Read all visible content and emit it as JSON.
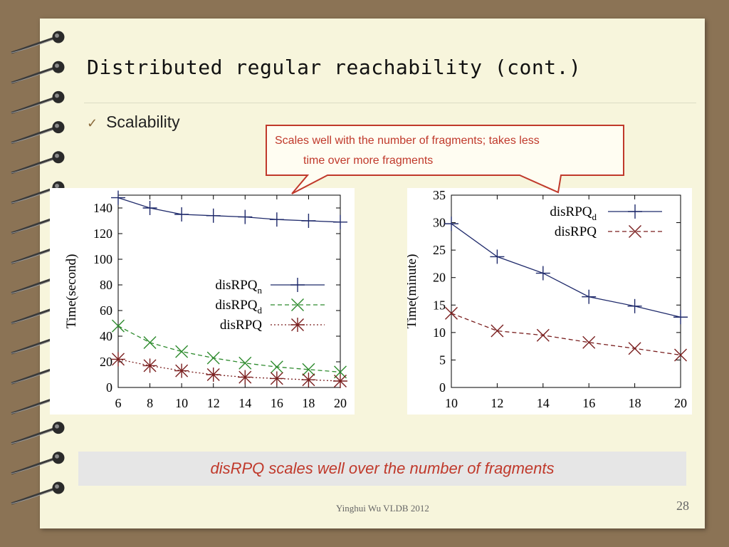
{
  "slide": {
    "title": "Distributed regular reachability (cont.)",
    "bullet": "Scalability",
    "callout_line1": "Scales well with the number of fragments;  takes less",
    "callout_line2": "time over more fragments",
    "conclusion": "disRPQ scales well over the number of fragments",
    "footer": "Yinghui Wu VLDB  2012",
    "page_number": "28"
  },
  "icons": {
    "bullet_marker": "check-icon",
    "binding": "spiral-binding-icon"
  },
  "colors": {
    "accent_red": "#c0392b",
    "series_navy": "#1f2a6b",
    "series_green": "#2e8b2e",
    "series_maroon": "#7a1f1f"
  },
  "chart_data": [
    {
      "type": "line",
      "ylabel": "Time(second)",
      "x": [
        6,
        8,
        10,
        12,
        14,
        16,
        18,
        20
      ],
      "xlim": [
        6,
        20
      ],
      "ylim": [
        0,
        150
      ],
      "yticks": [
        0,
        20,
        40,
        60,
        80,
        100,
        120,
        140
      ],
      "legend_position": "right",
      "series": [
        {
          "name": "disRPQ",
          "sub": "n",
          "marker": "plus",
          "color": "#1f2a6b",
          "dash": "solid",
          "values": [
            148,
            140,
            135,
            134,
            133,
            131,
            130,
            129
          ]
        },
        {
          "name": "disRPQ",
          "sub": "d",
          "marker": "cross",
          "color": "#2e8b2e",
          "dash": "dashed",
          "values": [
            48,
            35,
            28,
            23,
            19,
            16,
            14,
            12
          ]
        },
        {
          "name": "disRPQ",
          "sub": "",
          "marker": "star",
          "color": "#7a1f1f",
          "dash": "dotted",
          "values": [
            22,
            17,
            13,
            10,
            8,
            7,
            6,
            5
          ]
        }
      ]
    },
    {
      "type": "line",
      "ylabel": "Time(minute)",
      "x": [
        10,
        12,
        14,
        16,
        18,
        20
      ],
      "xlim": [
        10,
        20
      ],
      "ylim": [
        0,
        35
      ],
      "yticks": [
        0,
        5,
        10,
        15,
        20,
        25,
        30,
        35
      ],
      "legend_position": "top-right",
      "series": [
        {
          "name": "disRPQ",
          "sub": "d",
          "marker": "plus",
          "color": "#1f2a6b",
          "dash": "solid",
          "values": [
            29.8,
            23.8,
            20.8,
            16.5,
            14.8,
            12.8
          ]
        },
        {
          "name": "disRPQ",
          "sub": "",
          "marker": "cross",
          "color": "#7a1f1f",
          "dash": "dashed",
          "values": [
            13.5,
            10.3,
            9.5,
            8.2,
            7.1,
            5.9
          ]
        }
      ]
    }
  ]
}
